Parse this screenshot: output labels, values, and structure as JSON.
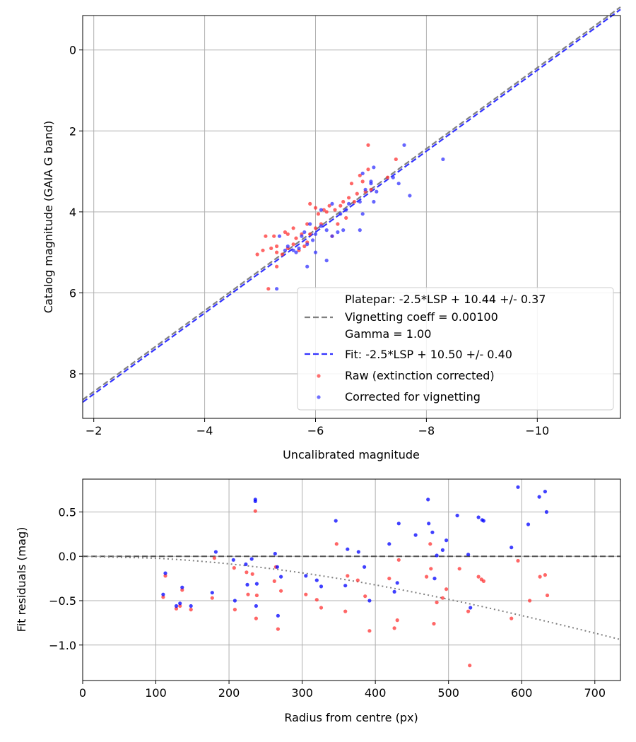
{
  "chart_data": [
    {
      "type": "scatter",
      "name": "calibration",
      "xlabel": "Uncalibrated magnitude",
      "ylabel": "Catalog magnitude (GAIA G band)",
      "xlim": [
        -1.8,
        -11.5
      ],
      "ylim": [
        9.1,
        -0.85
      ],
      "x_ticks": [
        -2,
        -4,
        -6,
        -8,
        -10
      ],
      "x_tick_labels": [
        "−2",
        "−4",
        "−6",
        "−8",
        "−10"
      ],
      "y_ticks": [
        0,
        2,
        4,
        6,
        8
      ],
      "y_tick_labels": [
        "0",
        "2",
        "4",
        "6",
        "8"
      ],
      "grid": true,
      "legend_position": "lower-right",
      "legend": {
        "platepar_lines": [
          "Platepar: -2.5*LSP + 10.44 +/- 0.37",
          "Vignetting coeff = 0.00100",
          "Gamma = 1.00"
        ],
        "fit": "Fit: -2.5*LSP + 10.50 +/- 0.40",
        "raw": "Raw (extinction corrected)",
        "corrected": "Corrected for vignetting"
      },
      "lines": [
        {
          "name": "Platepar",
          "slope": 1,
          "intercept": 10.44,
          "color": "#808080",
          "dash": "dashed"
        },
        {
          "name": "Fit",
          "slope": 1,
          "intercept": 10.5,
          "color": "#3333ff",
          "dash": "dashed"
        }
      ],
      "series": [
        {
          "name": "Raw (extinction corrected)",
          "color": "#ff3333",
          "points": [
            [
              -5.15,
              5.9
            ],
            [
              -4.95,
              5.05
            ],
            [
              -5.05,
              4.95
            ],
            [
              -5.2,
              4.9
            ],
            [
              -5.3,
              4.85
            ],
            [
              -5.1,
              4.6
            ],
            [
              -5.25,
              4.6
            ],
            [
              -5.3,
              5.0
            ],
            [
              -5.4,
              5.05
            ],
            [
              -5.5,
              4.9
            ],
            [
              -5.6,
              4.8
            ],
            [
              -5.7,
              4.95
            ],
            [
              -5.45,
              4.5
            ],
            [
              -5.6,
              4.4
            ],
            [
              -5.75,
              4.55
            ],
            [
              -5.85,
              4.3
            ],
            [
              -5.9,
              4.55
            ],
            [
              -6.0,
              4.4
            ],
            [
              -6.1,
              4.3
            ],
            [
              -6.05,
              4.05
            ],
            [
              -6.15,
              3.95
            ],
            [
              -6.2,
              4.0
            ],
            [
              -6.0,
              3.9
            ],
            [
              -5.9,
              3.8
            ],
            [
              -6.25,
              3.85
            ],
            [
              -6.35,
              3.95
            ],
            [
              -6.45,
              3.85
            ],
            [
              -6.5,
              3.75
            ],
            [
              -6.6,
              3.65
            ],
            [
              -6.75,
              3.55
            ],
            [
              -6.9,
              3.5
            ],
            [
              -6.85,
              3.25
            ],
            [
              -7.0,
              3.45
            ],
            [
              -6.95,
              2.95
            ],
            [
              -7.3,
              3.15
            ],
            [
              -7.45,
              2.7
            ],
            [
              -6.95,
              2.35
            ],
            [
              -5.3,
              5.35
            ],
            [
              -5.85,
              4.75
            ],
            [
              -5.65,
              4.65
            ],
            [
              -6.3,
              4.6
            ],
            [
              -6.4,
              4.3
            ],
            [
              -6.55,
              4.15
            ],
            [
              -6.7,
              3.75
            ],
            [
              -5.5,
              4.55
            ],
            [
              -5.8,
              4.85
            ],
            [
              -6.8,
              3.1
            ],
            [
              -6.65,
              3.3
            ]
          ]
        },
        {
          "name": "Corrected for vignetting",
          "color": "#3333ff",
          "points": [
            [
              -5.3,
              5.9
            ],
            [
              -5.35,
              4.6
            ],
            [
              -5.45,
              4.95
            ],
            [
              -5.5,
              4.85
            ],
            [
              -5.6,
              4.95
            ],
            [
              -5.7,
              4.9
            ],
            [
              -5.75,
              4.6
            ],
            [
              -5.8,
              4.5
            ],
            [
              -5.85,
              4.8
            ],
            [
              -5.9,
              4.3
            ],
            [
              -6.0,
              4.55
            ],
            [
              -6.1,
              4.35
            ],
            [
              -6.2,
              4.45
            ],
            [
              -6.3,
              4.6
            ],
            [
              -6.4,
              4.5
            ],
            [
              -6.5,
              4.45
            ],
            [
              -6.2,
              5.2
            ],
            [
              -5.85,
              5.35
            ],
            [
              -6.0,
              5.0
            ],
            [
              -6.45,
              4.05
            ],
            [
              -6.55,
              3.95
            ],
            [
              -6.6,
              3.8
            ],
            [
              -6.8,
              3.75
            ],
            [
              -6.9,
              3.45
            ],
            [
              -7.0,
              3.3
            ],
            [
              -7.1,
              3.5
            ],
            [
              -6.85,
              4.05
            ],
            [
              -7.05,
              3.75
            ],
            [
              -6.85,
              3.05
            ],
            [
              -7.05,
              2.9
            ],
            [
              -7.4,
              3.15
            ],
            [
              -7.6,
              2.35
            ],
            [
              -7.5,
              3.3
            ],
            [
              -7.7,
              3.6
            ],
            [
              -8.3,
              2.7
            ],
            [
              -6.8,
              4.45
            ],
            [
              -6.3,
              3.8
            ],
            [
              -5.95,
              4.7
            ],
            [
              -6.1,
              3.95
            ],
            [
              -5.65,
              5.0
            ],
            [
              -7.0,
              3.25
            ]
          ]
        }
      ]
    },
    {
      "type": "scatter",
      "name": "residuals",
      "xlabel": "Radius from centre (px)",
      "ylabel": "Fit residuals (mag)",
      "xlim": [
        0,
        735
      ],
      "ylim": [
        -1.4,
        0.87
      ],
      "x_ticks": [
        0,
        100,
        200,
        300,
        400,
        500,
        600,
        700
      ],
      "x_tick_labels": [
        "0",
        "100",
        "200",
        "300",
        "400",
        "500",
        "600",
        "700"
      ],
      "y_ticks": [
        0.5,
        0.0,
        -0.5,
        -1.0
      ],
      "y_tick_labels": [
        "0.5",
        "0.0",
        "−0.5",
        "−1.0"
      ],
      "grid": true,
      "zero_line": {
        "y": 0,
        "color": "#555555",
        "dash": "dashed"
      },
      "vignetting_curve": {
        "coeff": 0.001,
        "color": "#808080",
        "dash": "dotted"
      },
      "series": [
        {
          "name": "Raw (extinction corrected)",
          "color": "#ff3333",
          "points": [
            [
              110,
              -0.46
            ],
            [
              113,
              -0.22
            ],
            [
              128,
              -0.59
            ],
            [
              133,
              -0.56
            ],
            [
              136,
              -0.38
            ],
            [
              148,
              -0.6
            ],
            [
              177,
              -0.47
            ],
            [
              180,
              -0.02
            ],
            [
              207,
              -0.13
            ],
            [
              208,
              -0.6
            ],
            [
              224,
              -0.18
            ],
            [
              226,
              -0.43
            ],
            [
              232,
              -0.2
            ],
            [
              236,
              0.51
            ],
            [
              237,
              -0.7
            ],
            [
              238,
              -0.44
            ],
            [
              262,
              -0.28
            ],
            [
              264,
              -0.12
            ],
            [
              267,
              -0.82
            ],
            [
              271,
              -0.39
            ],
            [
              305,
              -0.43
            ],
            [
              320,
              -0.49
            ],
            [
              326,
              -0.58
            ],
            [
              347,
              0.14
            ],
            [
              359,
              -0.62
            ],
            [
              362,
              -0.22
            ],
            [
              376,
              -0.27
            ],
            [
              386,
              -0.45
            ],
            [
              392,
              -0.84
            ],
            [
              419,
              -0.25
            ],
            [
              426,
              -0.81
            ],
            [
              430,
              -0.72
            ],
            [
              432,
              -0.04
            ],
            [
              470,
              -0.23
            ],
            [
              475,
              0.14
            ],
            [
              476,
              -0.14
            ],
            [
              480,
              -0.76
            ],
            [
              484,
              -0.52
            ],
            [
              492,
              -0.47
            ],
            [
              497,
              -0.37
            ],
            [
              515,
              -0.14
            ],
            [
              527,
              -0.62
            ],
            [
              529,
              -1.23
            ],
            [
              541,
              -0.23
            ],
            [
              545,
              -0.26
            ],
            [
              548,
              -0.28
            ],
            [
              586,
              -0.7
            ],
            [
              595,
              -0.05
            ],
            [
              611,
              -0.5
            ],
            [
              625,
              -0.23
            ],
            [
              632,
              -0.21
            ],
            [
              635,
              -0.44
            ]
          ]
        },
        {
          "name": "Corrected for vignetting",
          "color": "#0000ff",
          "points": [
            [
              110,
              -0.43
            ],
            [
              113,
              -0.19
            ],
            [
              128,
              -0.56
            ],
            [
              133,
              -0.53
            ],
            [
              136,
              -0.35
            ],
            [
              148,
              -0.56
            ],
            [
              177,
              -0.41
            ],
            [
              182,
              0.05
            ],
            [
              206,
              -0.04
            ],
            [
              208,
              -0.5
            ],
            [
              223,
              -0.09
            ],
            [
              225,
              -0.32
            ],
            [
              231,
              -0.03
            ],
            [
              236,
              0.64
            ],
            [
              236,
              0.62
            ],
            [
              237,
              -0.56
            ],
            [
              238,
              -0.31
            ],
            [
              263,
              0.03
            ],
            [
              266,
              -0.12
            ],
            [
              267,
              -0.67
            ],
            [
              271,
              -0.23
            ],
            [
              305,
              -0.22
            ],
            [
              320,
              -0.27
            ],
            [
              326,
              -0.34
            ],
            [
              346,
              0.4
            ],
            [
              359,
              -0.33
            ],
            [
              362,
              0.08
            ],
            [
              377,
              0.05
            ],
            [
              385,
              -0.12
            ],
            [
              392,
              -0.5
            ],
            [
              419,
              0.14
            ],
            [
              426,
              -0.4
            ],
            [
              430,
              -0.3
            ],
            [
              432,
              0.37
            ],
            [
              455,
              0.24
            ],
            [
              472,
              0.64
            ],
            [
              473,
              0.37
            ],
            [
              478,
              0.27
            ],
            [
              481,
              -0.25
            ],
            [
              484,
              0.01
            ],
            [
              492,
              0.07
            ],
            [
              497,
              0.18
            ],
            [
              512,
              0.46
            ],
            [
              527,
              0.02
            ],
            [
              530,
              -0.58
            ],
            [
              541,
              0.44
            ],
            [
              546,
              0.41
            ],
            [
              548,
              0.4
            ],
            [
              586,
              0.1
            ],
            [
              595,
              0.78
            ],
            [
              609,
              0.36
            ],
            [
              624,
              0.67
            ],
            [
              632,
              0.73
            ],
            [
              634,
              0.5
            ]
          ]
        }
      ]
    }
  ]
}
